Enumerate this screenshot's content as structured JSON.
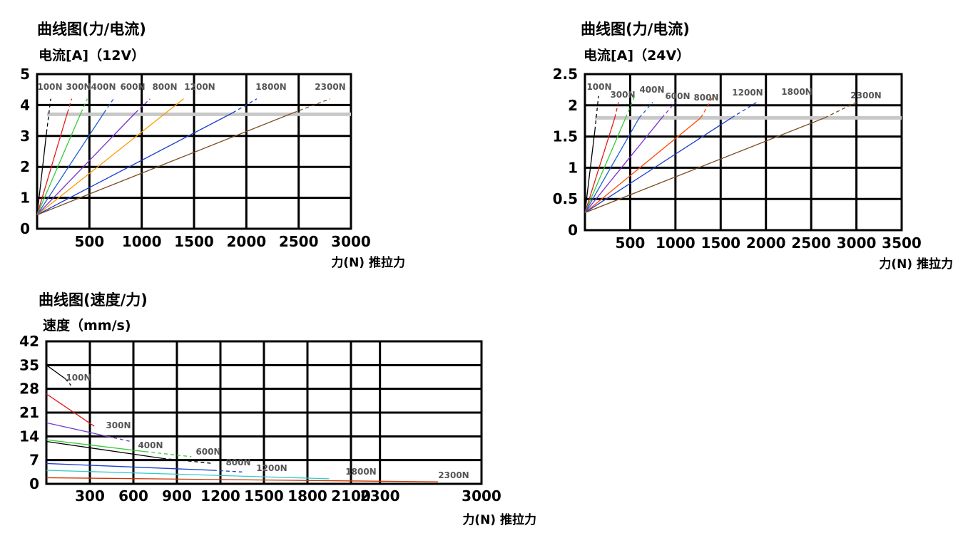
{
  "chart_data": [
    {
      "type": "line",
      "title": "曲线图(力/电流)",
      "ylabel": "电流[A]（12V）",
      "xlabel": "力(N) 推拉力",
      "xlim": [
        0,
        3000
      ],
      "ylim": [
        0,
        5
      ],
      "x_ticks": [
        "500",
        "1000",
        "1500",
        "2000",
        "2500",
        "3000"
      ],
      "y_ticks": [
        "0",
        "1",
        "2",
        "3",
        "4",
        "5"
      ],
      "grid": true,
      "reference_line_y": 3.7,
      "series": [
        {
          "name": "100N",
          "color": "#000000",
          "points": [
            [
              0,
              0.45
            ],
            [
              130,
              4.2
            ]
          ],
          "dashed_from": [
            90,
            3.1
          ]
        },
        {
          "name": "300N",
          "color": "#e31a1c",
          "points": [
            [
              0,
              0.45
            ],
            [
              330,
              4.2
            ]
          ],
          "dashed_from": [
            290,
            3.75
          ]
        },
        {
          "name": "400N",
          "color": "#33cc33",
          "points": [
            [
              0,
              0.45
            ],
            [
              480,
              4.2
            ]
          ],
          "dashed_from": [
            420,
            3.75
          ]
        },
        {
          "name": "600N",
          "color": "#1f5fd1",
          "points": [
            [
              0,
              0.45
            ],
            [
              730,
              4.2
            ]
          ],
          "dashed_from": [
            640,
            3.75
          ]
        },
        {
          "name": "800N",
          "color": "#7a2fd0",
          "points": [
            [
              0,
              0.45
            ],
            [
              1080,
              4.2
            ]
          ],
          "dashed_from": [
            940,
            3.75
          ]
        },
        {
          "name": "1200N",
          "color": "#ff9900",
          "points": [
            [
              0,
              0.45
            ],
            [
              1400,
              4.2
            ]
          ]
        },
        {
          "name": "1800N",
          "color": "#1a3fcc",
          "points": [
            [
              0,
              0.45
            ],
            [
              2100,
              4.2
            ]
          ],
          "dashed_from": [
            1870,
            3.75
          ]
        },
        {
          "name": "2300N",
          "color": "#7a4a1e",
          "points": [
            [
              0,
              0.45
            ],
            [
              2800,
              4.2
            ]
          ],
          "dashed_from": [
            2450,
            3.75
          ]
        }
      ]
    },
    {
      "type": "line",
      "title": "曲线图(力/电流)",
      "ylabel": "电流[A]（24V）",
      "xlabel": "力(N) 推拉力",
      "xlim": [
        0,
        3500
      ],
      "ylim": [
        0,
        2.5
      ],
      "x_ticks": [
        "500",
        "1000",
        "1500",
        "2000",
        "2500",
        "3000",
        "3500"
      ],
      "y_ticks": [
        "0",
        "0.5",
        "1",
        "1.5",
        "2",
        "2.5"
      ],
      "grid": true,
      "reference_line_y": 1.8,
      "series": [
        {
          "name": "100N",
          "color": "#000000",
          "points": [
            [
              0,
              0.28
            ],
            [
              150,
              2.15
            ]
          ],
          "dashed_from": [
            110,
            1.6
          ]
        },
        {
          "name": "300N",
          "color": "#e31a1c",
          "points": [
            [
              0,
              0.28
            ],
            [
              370,
              2.05
            ]
          ],
          "dashed_from": [
            330,
            1.8
          ]
        },
        {
          "name": "400N",
          "color": "#33cc33",
          "points": [
            [
              0,
              0.28
            ],
            [
              550,
              2.15
            ]
          ],
          "dashed_from": [
            450,
            1.8
          ]
        },
        {
          "name": "600N",
          "color": "#1f5fd1",
          "points": [
            [
              0,
              0.28
            ],
            [
              750,
              2.05
            ]
          ],
          "dashed_from": [
            600,
            1.8
          ]
        },
        {
          "name": "800N",
          "color": "#7a2fd0",
          "points": [
            [
              0,
              0.28
            ],
            [
              1000,
              2.05
            ]
          ],
          "dashed_from": [
            850,
            1.8
          ]
        },
        {
          "name": "1200N",
          "color": "#ff4a00",
          "points": [
            [
              0,
              0.28
            ],
            [
              1420,
              2.15
            ]
          ],
          "dashed_from": [
            1280,
            1.8
          ]
        },
        {
          "name": "1800N",
          "color": "#1a3fcc",
          "points": [
            [
              0,
              0.28
            ],
            [
              1900,
              2.05
            ]
          ],
          "dashed_from": [
            1620,
            1.8
          ]
        },
        {
          "name": "2300N",
          "color": "#7a4a1e",
          "points": [
            [
              0,
              0.28
            ],
            [
              3000,
              2.05
            ]
          ],
          "dashed_from": [
            2650,
            1.8
          ]
        }
      ]
    },
    {
      "type": "line",
      "title": "曲线图(速度/力)",
      "ylabel": "速度（mm/s)",
      "xlabel": "力(N) 推拉力",
      "xlim": [
        0,
        3000
      ],
      "ylim": [
        0,
        42
      ],
      "x_ticks": [
        "300",
        "600",
        "900",
        "1200",
        "1500",
        "1800",
        "2100",
        "2300",
        "3000"
      ],
      "y_ticks": [
        "0",
        "7",
        "14",
        "21",
        "28",
        "35",
        "42"
      ],
      "grid": true,
      "series": [
        {
          "name": "100N",
          "color": "#000000",
          "points": [
            [
              0,
              35
            ],
            [
              170,
              29
            ]
          ],
          "dashed_from": [
            130,
            31
          ]
        },
        {
          "name": "300N",
          "color": "#e31a1c",
          "points": [
            [
              0,
              26.5
            ],
            [
              330,
              17
            ]
          ]
        },
        {
          "name": "400N",
          "color": "#6a3fd0",
          "points": [
            [
              0,
              18
            ],
            [
              580,
              12.5
            ]
          ],
          "dashed_from": [
            420,
            14
          ]
        },
        {
          "name": "600N",
          "color": "#33cc33",
          "points": [
            [
              0,
              13
            ],
            [
              1000,
              8
            ]
          ],
          "dashed_from": [
            680,
            9.5
          ]
        },
        {
          "name": "800N",
          "color": "#000000",
          "points": [
            [
              0,
              12.5
            ],
            [
              1150,
              6
            ]
          ],
          "dashed_from": [
            800,
            7.5
          ]
        },
        {
          "name": "1200N",
          "color": "#1a3fcc",
          "points": [
            [
              0,
              6
            ],
            [
              1350,
              3.5
            ]
          ],
          "dashed_from": [
            1150,
            4
          ]
        },
        {
          "name": "1800N",
          "color": "#33cccc",
          "points": [
            [
              0,
              4
            ],
            [
              1950,
              1.5
            ]
          ]
        },
        {
          "name": "2300N",
          "color": "#cc3300",
          "points": [
            [
              0,
              1.8
            ],
            [
              2700,
              0.6
            ]
          ]
        }
      ]
    }
  ]
}
